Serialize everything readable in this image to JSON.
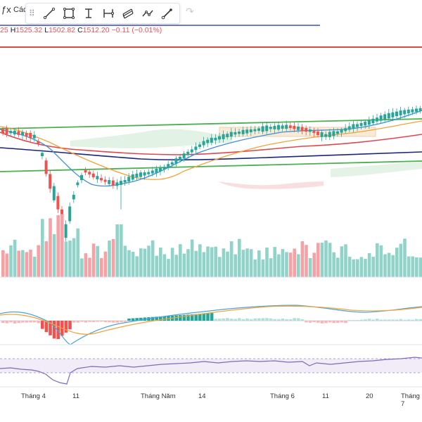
{
  "toolbar": {
    "fx_symbol": "ƒx",
    "indicators_label": "Các",
    "grip": "⠿",
    "tools": [
      "trend-line-icon",
      "rectangle-icon",
      "text-cursor-icon",
      "measure-icon",
      "fib-channel-icon",
      "polyline-icon",
      "brush-icon"
    ],
    "redo": "↷"
  },
  "ohlc": {
    "open_tail": "25",
    "high_label": "H",
    "high": "1525.32",
    "low_label": "L",
    "low": "1502.82",
    "close_label": "C",
    "close": "1512.20",
    "change": "−0.11 (−0.01%)"
  },
  "x_axis": {
    "labels": [
      "Tháng 4",
      "11",
      "Tháng Năm",
      "14",
      "Tháng 6",
      "11",
      "20",
      "Tháng 7"
    ]
  },
  "colors": {
    "up": "#26a69a",
    "down": "#ef5350",
    "vol_up": "#8fd3c9",
    "vol_down": "#f6a1a6",
    "trend_green": "#4caf50",
    "ma_red": "#e0474c",
    "ma_navy": "#1a237e",
    "ma_orange": "#f2a33a",
    "ma_blue": "#3d8fd8",
    "rsi_purple": "#8e7cc3"
  },
  "chart_data": {
    "type": "candlestick",
    "candle_count": 107,
    "note_last_close": 1512.2
  }
}
